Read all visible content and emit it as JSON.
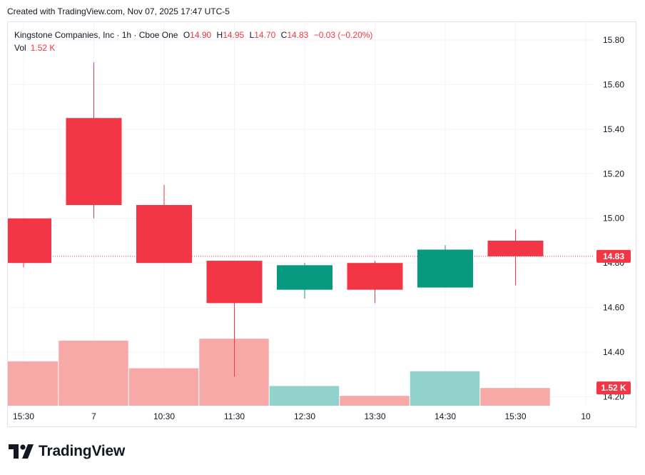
{
  "header": {
    "created_text": "Created with TradingView.com, Nov 07, 2025 17:47 UTC-5"
  },
  "legend": {
    "symbol": "Kingstone Companies, Inc · 1h · Cboe One",
    "o_label": "O",
    "o_value": "14.90",
    "h_label": "H",
    "h_value": "14.95",
    "l_label": "L",
    "l_value": "14.70",
    "c_label": "C",
    "c_value": "14.83",
    "change": "−0.03 (−0.20%)",
    "vol_label": "Vol",
    "vol_value": "1.52 K"
  },
  "colors": {
    "up": "#089981",
    "down": "#f23645",
    "vol_up": "#92d2cc",
    "vol_down": "#f7a9a7",
    "grid": "#f0f3fa",
    "axis_text": "#131722"
  },
  "chart_data": {
    "type": "candlestick",
    "x_tick_labels": [
      "15:30",
      "7",
      "10:30",
      "11:30",
      "12:30",
      "13:30",
      "14:30",
      "15:30",
      "10"
    ],
    "y_tick_labels": [
      "14.20",
      "14.40",
      "14.60",
      "14.80",
      "15.00",
      "15.20",
      "15.40",
      "15.60",
      "15.80"
    ],
    "ylim": [
      14.16,
      15.88
    ],
    "candles": [
      {
        "time": "15:30",
        "open": 15.0,
        "high": 15.0,
        "low": 14.78,
        "close": 14.8,
        "volume": 0.45
      },
      {
        "time": "7",
        "open": 15.45,
        "high": 15.7,
        "low": 15.0,
        "close": 15.06,
        "volume": 0.66
      },
      {
        "time": "10:30",
        "open": 15.06,
        "high": 15.15,
        "low": 14.8,
        "close": 14.8,
        "volume": 0.38
      },
      {
        "time": "11:30",
        "open": 14.81,
        "high": 14.81,
        "low": 14.29,
        "close": 14.62,
        "volume": 0.68
      },
      {
        "time": "12:30",
        "open": 14.68,
        "high": 14.8,
        "low": 14.64,
        "close": 14.79,
        "volume": 0.2
      },
      {
        "time": "13:30",
        "open": 14.8,
        "high": 14.81,
        "low": 14.62,
        "close": 14.68,
        "volume": 0.1
      },
      {
        "time": "14:30",
        "open": 14.69,
        "high": 14.88,
        "low": 14.69,
        "close": 14.86,
        "volume": 0.35
      },
      {
        "time": "15:30",
        "open": 14.9,
        "high": 14.95,
        "low": 14.7,
        "close": 14.83,
        "volume": 0.18
      }
    ],
    "last_price": 14.83,
    "last_price_label": "14.83",
    "last_volume_label": "1.52 K",
    "grid": true
  }
}
